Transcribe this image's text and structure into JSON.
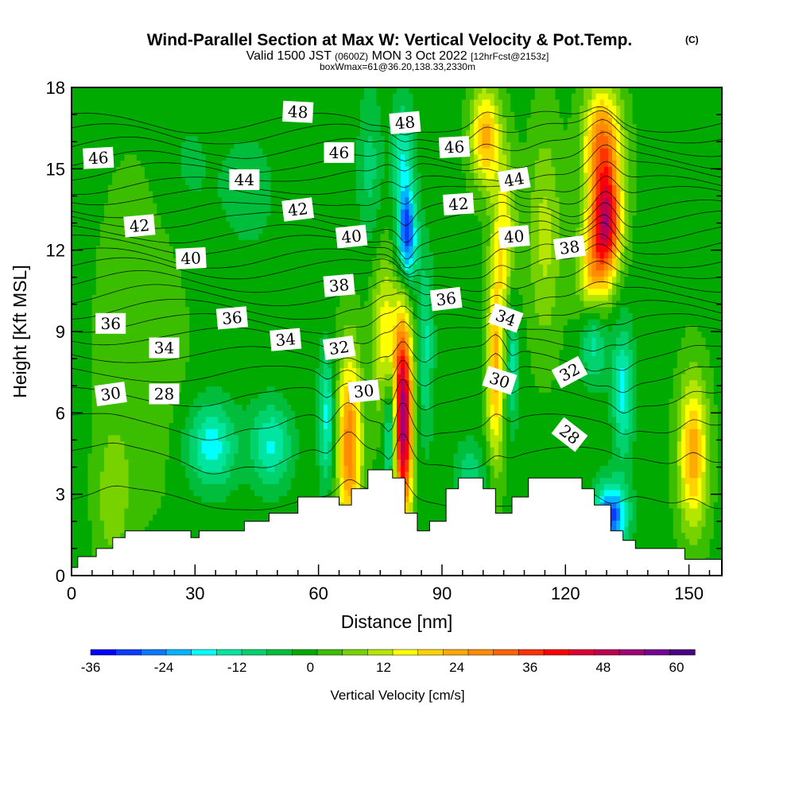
{
  "title": "Wind-Parallel Section at Max W: Vertical Velocity & Pot.Temp.",
  "copyright": "(C)",
  "subtitle": {
    "valid": "Valid 1500 JST",
    "zulu": "(0600Z)",
    "date": "MON 3 Oct 2022",
    "forecast": "[12hrFcst@2153z]"
  },
  "box_info": "boxWmax=61@36.20,138.33,2330m",
  "chart_data": {
    "type": "heatmap",
    "xlabel": "Distance [nm]",
    "ylabel": "Height [Kft MSL]",
    "xlim": [
      0,
      158
    ],
    "ylim": [
      0,
      18
    ],
    "xticks": [
      0,
      30,
      60,
      90,
      120,
      150
    ],
    "yticks": [
      0,
      3,
      6,
      9,
      12,
      15,
      18
    ],
    "colorbar": {
      "label": "Vertical Velocity [cm/s]",
      "min": -36,
      "max": 63,
      "step": 4.5,
      "tick_values": [
        -36,
        -24,
        -12,
        0,
        12,
        24,
        36,
        48,
        60
      ],
      "colors": [
        "#0000ff",
        "#0a3cff",
        "#0a78ff",
        "#00b4ff",
        "#00ffff",
        "#00e6a0",
        "#00d26e",
        "#00be3c",
        "#00aa00",
        "#3cbe00",
        "#78d200",
        "#b4e600",
        "#ffff00",
        "#ffd200",
        "#ffaa00",
        "#ff8c00",
        "#ff6400",
        "#ff3200",
        "#ff0000",
        "#dc0032",
        "#be0050",
        "#a00078",
        "#780096",
        "#4b0082"
      ]
    },
    "w_field": {
      "baseline_cm_s": 3,
      "cells": [
        {
          "x": 17,
          "y": 9,
          "w": 6,
          "rx": 10,
          "ry": 6
        },
        {
          "x": 28,
          "y": 15,
          "w": -4,
          "rx": 8,
          "ry": 3
        },
        {
          "x": 43,
          "y": 14.2,
          "w": -7,
          "rx": 6,
          "ry": 2
        },
        {
          "x": 34,
          "y": 4.8,
          "w": -19,
          "rx": 6,
          "ry": 1.6
        },
        {
          "x": 48.5,
          "y": 4.8,
          "w": -17,
          "rx": 5,
          "ry": 1.6
        },
        {
          "x": 10,
          "y": 2.8,
          "w": 9,
          "rx": 4,
          "ry": 2.5
        },
        {
          "x": 62,
          "y": 5.8,
          "w": -18,
          "rx": 2,
          "ry": 2.5
        },
        {
          "x": 67.5,
          "y": 4.8,
          "w": 32,
          "rx": 3,
          "ry": 3.5
        },
        {
          "x": 76,
          "y": 8.8,
          "w": 18,
          "rx": 3,
          "ry": 3
        },
        {
          "x": 80.5,
          "y": 5.8,
          "w": 58,
          "rx": 2.3,
          "ry": 3.8
        },
        {
          "x": 77.5,
          "y": 5.3,
          "w": -24,
          "rx": 1.6,
          "ry": 2.2
        },
        {
          "x": 81.5,
          "y": 12.5,
          "w": -33,
          "rx": 2.3,
          "ry": 1.8
        },
        {
          "x": 80.5,
          "y": 15.5,
          "w": -15,
          "rx": 2.6,
          "ry": 2.2
        },
        {
          "x": 72.5,
          "y": 15,
          "w": -9,
          "rx": 3,
          "ry": 3
        },
        {
          "x": 86,
          "y": 8.5,
          "w": -13,
          "rx": 2,
          "ry": 3.5
        },
        {
          "x": 100.5,
          "y": 16.2,
          "w": 26,
          "rx": 3.5,
          "ry": 1.8
        },
        {
          "x": 105,
          "y": 12.5,
          "w": 18,
          "rx": 3,
          "ry": 3
        },
        {
          "x": 103,
          "y": 7.5,
          "w": 25,
          "rx": 2.2,
          "ry": 3.5
        },
        {
          "x": 107,
          "y": 8,
          "w": -16,
          "rx": 1.6,
          "ry": 2.5
        },
        {
          "x": 115,
          "y": 12.5,
          "w": 12,
          "rx": 4,
          "ry": 4
        },
        {
          "x": 129,
          "y": 15.8,
          "w": 34,
          "rx": 4.5,
          "ry": 2.2
        },
        {
          "x": 130,
          "y": 13,
          "w": 43,
          "rx": 3.5,
          "ry": 1.8
        },
        {
          "x": 127,
          "y": 11,
          "w": 24,
          "rx": 4,
          "ry": 2.2
        },
        {
          "x": 127,
          "y": 8.8,
          "w": -20,
          "rx": 3.5,
          "ry": 1.6
        },
        {
          "x": 134,
          "y": 6.8,
          "w": -18,
          "rx": 2.5,
          "ry": 2.5
        },
        {
          "x": 131,
          "y": 2.2,
          "w": -32,
          "rx": 4,
          "ry": 1.2
        },
        {
          "x": 151,
          "y": 4.5,
          "w": 27,
          "rx": 3.5,
          "ry": 2.8
        },
        {
          "x": 97,
          "y": 3.8,
          "w": -10,
          "rx": 4,
          "ry": 1.2
        }
      ]
    },
    "terrain_kft": [
      [
        0,
        0.3
      ],
      [
        1.5,
        0.7
      ],
      [
        6,
        1.0
      ],
      [
        10,
        1.4
      ],
      [
        13,
        1.65
      ],
      [
        29,
        1.4
      ],
      [
        31,
        1.65
      ],
      [
        42,
        2.0
      ],
      [
        48,
        2.3
      ],
      [
        55,
        2.9
      ],
      [
        65,
        2.6
      ],
      [
        68,
        3.2
      ],
      [
        72,
        3.9
      ],
      [
        78,
        3.6
      ],
      [
        81,
        2.3
      ],
      [
        84,
        1.65
      ],
      [
        87,
        2.0
      ],
      [
        91,
        3.2
      ],
      [
        94,
        3.6
      ],
      [
        100,
        3.2
      ],
      [
        103,
        2.3
      ],
      [
        107,
        2.9
      ],
      [
        111,
        3.6
      ],
      [
        119,
        3.6
      ],
      [
        124,
        3.2
      ],
      [
        127,
        2.6
      ],
      [
        131,
        1.65
      ],
      [
        134,
        1.3
      ],
      [
        137,
        1.0
      ],
      [
        149,
        0.6
      ],
      [
        158,
        0.6
      ]
    ],
    "theta_isentropes": {
      "levels": [
        26,
        27,
        28,
        29,
        30,
        31,
        32,
        33,
        34,
        35,
        36,
        37,
        38,
        39,
        40,
        41,
        42,
        43,
        44,
        45,
        46,
        47,
        48,
        49
      ],
      "base_height_kft": [
        2.8,
        4.4,
        5.6,
        6.6,
        7.4,
        8.1,
        8.8,
        9.3,
        9.8,
        10.3,
        10.8,
        11.3,
        11.7,
        12.2,
        12.6,
        13.1,
        13.5,
        14.0,
        14.4,
        14.9,
        15.3,
        15.8,
        16.3,
        16.7
      ]
    },
    "contour_labels": [
      {
        "text": "48",
        "x": 55,
        "y": 17.1,
        "rot": 3
      },
      {
        "text": "48",
        "x": 81,
        "y": 16.7,
        "rot": -5
      },
      {
        "text": "46",
        "x": 6.5,
        "y": 15.4,
        "rot": -3
      },
      {
        "text": "46",
        "x": 65,
        "y": 15.6,
        "rot": 0
      },
      {
        "text": "46",
        "x": 93,
        "y": 15.8,
        "rot": -3
      },
      {
        "text": "44",
        "x": 42,
        "y": 14.6,
        "rot": 0
      },
      {
        "text": "44",
        "x": 107.5,
        "y": 14.6,
        "rot": -10
      },
      {
        "text": "42",
        "x": 16.5,
        "y": 12.9,
        "rot": -5
      },
      {
        "text": "42",
        "x": 55,
        "y": 13.5,
        "rot": -7
      },
      {
        "text": "42",
        "x": 94,
        "y": 13.7,
        "rot": -4
      },
      {
        "text": "40",
        "x": 29,
        "y": 11.7,
        "rot": -3
      },
      {
        "text": "40",
        "x": 68,
        "y": 12.5,
        "rot": -6
      },
      {
        "text": "40",
        "x": 107.5,
        "y": 12.5,
        "rot": -5
      },
      {
        "text": "38",
        "x": 65,
        "y": 10.7,
        "rot": -5
      },
      {
        "text": "38",
        "x": 121,
        "y": 12.1,
        "rot": -8
      },
      {
        "text": "36",
        "x": 9.5,
        "y": 9.3,
        "rot": 0
      },
      {
        "text": "36",
        "x": 39,
        "y": 9.5,
        "rot": -5
      },
      {
        "text": "36",
        "x": 91,
        "y": 10.2,
        "rot": -7
      },
      {
        "text": "34",
        "x": 22.5,
        "y": 8.4,
        "rot": 0
      },
      {
        "text": "34",
        "x": 52,
        "y": 8.7,
        "rot": -5
      },
      {
        "text": "34",
        "x": 105.5,
        "y": 9.5,
        "rot": 20
      },
      {
        "text": "32",
        "x": 65,
        "y": 8.4,
        "rot": -8
      },
      {
        "text": "32",
        "x": 121,
        "y": 7.5,
        "rot": -28
      },
      {
        "text": "30",
        "x": 9.5,
        "y": 6.7,
        "rot": -8
      },
      {
        "text": "30",
        "x": 71,
        "y": 6.8,
        "rot": -6
      },
      {
        "text": "30",
        "x": 104,
        "y": 7.2,
        "rot": 18
      },
      {
        "text": "28",
        "x": 22.5,
        "y": 6.7,
        "rot": 0
      },
      {
        "text": "28",
        "x": 121,
        "y": 5.2,
        "rot": 38
      }
    ]
  }
}
